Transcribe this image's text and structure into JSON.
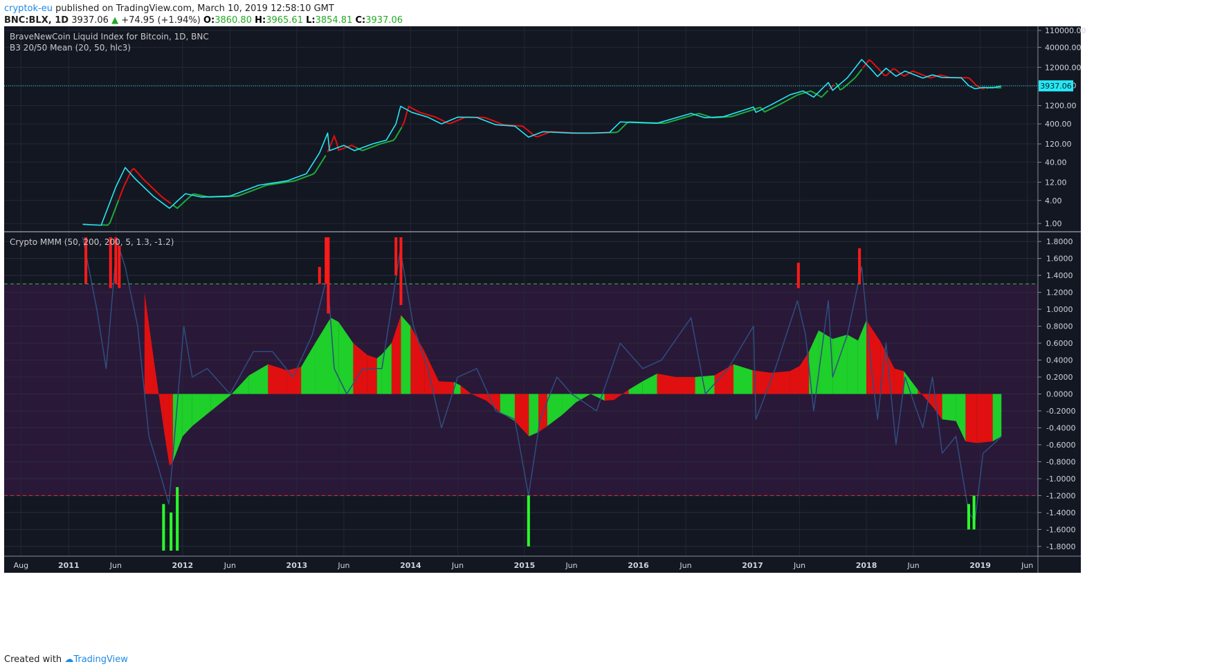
{
  "header": {
    "author": "cryptok-eu",
    "published_text": "published on TradingView.com, March 10, 2019 12:58:10 GMT",
    "symbol": "BNC:BLX, 1D",
    "price": "3937.06",
    "change_arrow": "▲",
    "change": "+74.95 (+1.94%)",
    "o_label": "O:",
    "o": "3860.80",
    "h_label": "H:",
    "h": "3965.61",
    "l_label": "L:",
    "l": "3854.81",
    "c_label": "C:",
    "c": "3937.06"
  },
  "footer": {
    "created_with": "Created with",
    "brand": "TradingView"
  },
  "colors": {
    "background": "#131722",
    "price_line": "#26e8f5",
    "ma_green": "#1faa3a",
    "ma_red": "#e01010",
    "bar_green": "#1fcf2a",
    "bar_red": "#e01010",
    "osc_line": "#2e4e80",
    "band": "#2a1838",
    "upper_line": "#2ec44e",
    "lower_line": "#e83030"
  },
  "chart_data": [
    {
      "type": "line",
      "pane": "price",
      "title": "BraveNewCoin Liquid Index for Bitcoin, 1D, BNC",
      "subtitle": "B3 20/50 Mean (20, 50, hlc3)",
      "yscale": "log",
      "ylim": [
        0.85,
        120000
      ],
      "y_ticks": [
        "1.00",
        "4.00",
        "12.00",
        "40.00",
        "120.00",
        "400.00",
        "1200.00",
        "4000.00",
        "12000.00",
        "40000.00",
        "110000.00"
      ],
      "last_price_label": "3937.06",
      "last_price": 3937.06,
      "x": [
        "2011-02-15",
        "2011-04-15",
        "2011-06-01",
        "2011-07-01",
        "2011-08-01",
        "2011-10-01",
        "2011-11-20",
        "2012-01-10",
        "2012-03-01",
        "2012-06-01",
        "2012-09-01",
        "2012-12-01",
        "2013-02-01",
        "2013-03-15",
        "2013-04-10",
        "2013-04-16",
        "2013-06-01",
        "2013-07-05",
        "2013-09-01",
        "2013-10-15",
        "2013-11-15",
        "2013-11-30",
        "2014-01-05",
        "2014-02-25",
        "2014-04-10",
        "2014-06-01",
        "2014-08-01",
        "2014-10-01",
        "2014-12-01",
        "2015-01-14",
        "2015-03-01",
        "2015-06-01",
        "2015-08-01",
        "2015-10-01",
        "2015-11-04",
        "2016-01-01",
        "2016-03-01",
        "2016-06-18",
        "2016-08-01",
        "2016-10-01",
        "2017-01-04",
        "2017-01-12",
        "2017-03-01",
        "2017-05-01",
        "2017-06-12",
        "2017-07-16",
        "2017-09-01",
        "2017-09-15",
        "2017-11-01",
        "2017-12-17",
        "2018-01-15",
        "2018-02-06",
        "2018-03-05",
        "2018-04-06",
        "2018-05-05",
        "2018-07-01",
        "2018-08-01",
        "2018-09-01",
        "2018-11-01",
        "2018-11-25",
        "2018-12-15",
        "2019-01-10",
        "2019-02-10",
        "2019-03-10"
      ],
      "series": [
        {
          "values": [
            0.95,
            0.9,
            9,
            29,
            15,
            5,
            2.5,
            6,
            4.9,
            5.2,
            10,
            13,
            20,
            70,
            230,
            80,
            110,
            80,
            120,
            150,
            400,
            1150,
            800,
            600,
            400,
            600,
            590,
            380,
            350,
            180,
            250,
            230,
            230,
            240,
            450,
            430,
            415,
            750,
            580,
            620,
            1100,
            800,
            1250,
            2300,
            2900,
            2000,
            4800,
            3000,
            6400,
            19200,
            11000,
            6900,
            11400,
            7000,
            9600,
            6300,
            7600,
            6500,
            6400,
            4000,
            3300,
            3600,
            3500,
            3937
          ]
        }
      ],
      "ma_segments": [
        {
          "from": "2011-04-15",
          "to": "2011-06-10",
          "color": "green"
        },
        {
          "from": "2011-06-10",
          "to": "2011-12-01",
          "color": "red"
        },
        {
          "from": "2011-12-01",
          "to": "2013-04-10",
          "color": "green"
        },
        {
          "from": "2013-04-10",
          "to": "2013-07-10",
          "color": "red"
        },
        {
          "from": "2013-07-10",
          "to": "2013-12-05",
          "color": "green"
        },
        {
          "from": "2013-12-05",
          "to": "2015-10-01",
          "color": "red"
        },
        {
          "from": "2015-10-01",
          "to": "2017-09-05",
          "color": "green"
        },
        {
          "from": "2017-09-05",
          "to": "2017-09-25",
          "color": "red"
        },
        {
          "from": "2017-09-25",
          "to": "2017-12-20",
          "color": "green"
        },
        {
          "from": "2017-12-20",
          "to": "2019-01-20",
          "color": "red"
        },
        {
          "from": "2019-01-20",
          "to": "2019-03-10",
          "color": "green"
        }
      ]
    },
    {
      "type": "area",
      "pane": "oscillator",
      "title": "Crypto MMM (50, 200, 200, 5, 1.3, -1.2)",
      "ylim": [
        -1.85,
        1.85
      ],
      "y_ticks": [
        "1.8000",
        "1.6000",
        "1.4000",
        "1.2000",
        "1.0000",
        "0.8000",
        "0.6000",
        "0.4000",
        "0.2000",
        "0.0000",
        "-0.2000",
        "-0.4000",
        "-0.6000",
        "-0.8000",
        "-1.0000",
        "-1.2000",
        "-1.4000",
        "-1.6000",
        "-1.8000"
      ],
      "upper_threshold": 1.3,
      "lower_threshold": -1.2,
      "histogram": {
        "x": [
          "2011-09-01",
          "2011-10-01",
          "2011-11-01",
          "2011-11-20",
          "2011-12-01",
          "2012-01-01",
          "2012-02-01",
          "2012-04-01",
          "2012-06-01",
          "2012-08-01",
          "2012-10-01",
          "2012-12-01",
          "2013-01-15",
          "2013-03-01",
          "2013-04-20",
          "2013-05-15",
          "2013-07-01",
          "2013-08-15",
          "2013-09-15",
          "2013-10-01",
          "2013-11-01",
          "2013-12-01",
          "2014-01-01",
          "2014-02-15",
          "2014-04-01",
          "2014-05-20",
          "2014-06-10",
          "2014-07-15",
          "2014-09-01",
          "2014-10-15",
          "2014-12-01",
          "2015-01-15",
          "2015-02-15",
          "2015-03-15",
          "2015-05-01",
          "2015-06-15",
          "2015-08-01",
          "2015-09-15",
          "2015-10-15",
          "2015-12-01",
          "2016-01-15",
          "2016-03-01",
          "2016-05-01",
          "2016-07-01",
          "2016-09-01",
          "2016-11-01",
          "2017-01-01",
          "2017-03-01",
          "2017-05-01",
          "2017-06-01",
          "2017-07-01",
          "2017-08-01",
          "2017-09-15",
          "2017-11-01",
          "2017-12-05",
          "2018-01-01",
          "2018-02-15",
          "2018-04-01",
          "2018-05-01",
          "2018-06-15",
          "2018-08-01",
          "2018-09-01",
          "2018-10-15",
          "2018-11-15",
          "2018-12-20",
          "2019-02-10",
          "2019-03-10"
        ],
        "values": [
          1.2,
          0.4,
          -0.4,
          -0.85,
          -0.8,
          -0.5,
          -0.38,
          -0.2,
          -0.02,
          0.22,
          0.35,
          0.28,
          0.32,
          0.6,
          0.9,
          0.85,
          0.6,
          0.46,
          0.42,
          0.47,
          0.6,
          0.93,
          0.8,
          0.5,
          0.15,
          0.14,
          0.1,
          0.0,
          -0.08,
          -0.22,
          -0.32,
          -0.5,
          -0.45,
          -0.38,
          -0.25,
          -0.1,
          0.0,
          -0.08,
          -0.07,
          0.05,
          0.15,
          0.24,
          0.2,
          0.2,
          0.22,
          0.35,
          0.28,
          0.25,
          0.27,
          0.33,
          0.5,
          0.75,
          0.65,
          0.7,
          0.63,
          0.87,
          0.62,
          0.3,
          0.27,
          0.05,
          -0.15,
          -0.3,
          -0.32,
          -0.56,
          -0.58,
          -0.56,
          -0.5
        ],
        "colors": [
          "red",
          "red",
          "red",
          "red",
          "green",
          "green",
          "green",
          "green",
          "green",
          "green",
          "red",
          "red",
          "green",
          "green",
          "green",
          "green",
          "red",
          "red",
          "green",
          "green",
          "red",
          "green",
          "red",
          "red",
          "red",
          "green",
          "red",
          "red",
          "red",
          "green",
          "red",
          "green",
          "red",
          "green",
          "green",
          "green",
          "green",
          "red",
          "red",
          "green",
          "green",
          "red",
          "red",
          "green",
          "red",
          "green",
          "red",
          "red",
          "red",
          "red",
          "green",
          "green",
          "green",
          "green",
          "green",
          "red",
          "red",
          "red",
          "green",
          "red",
          "red",
          "green",
          "green",
          "red",
          "red",
          "green",
          "green"
        ]
      },
      "oscillator": {
        "x": [
          "2011-02-15",
          "2011-04-01",
          "2011-05-01",
          "2011-06-05",
          "2011-07-01",
          "2011-08-10",
          "2011-09-15",
          "2011-10-10",
          "2011-11-18",
          "2012-01-05",
          "2012-02-01",
          "2012-03-20",
          "2012-06-01",
          "2012-08-15",
          "2012-10-15",
          "2012-12-20",
          "2013-02-20",
          "2013-04-09",
          "2013-05-01",
          "2013-06-10",
          "2013-08-01",
          "2013-10-01",
          "2013-11-29",
          "2014-01-10",
          "2014-02-25",
          "2014-04-10",
          "2014-06-01",
          "2014-08-01",
          "2014-10-01",
          "2014-12-01",
          "2015-01-14",
          "2015-02-20",
          "2015-04-15",
          "2015-06-01",
          "2015-08-20",
          "2015-11-04",
          "2016-01-15",
          "2016-03-15",
          "2016-06-18",
          "2016-08-03",
          "2016-10-15",
          "2017-01-04",
          "2017-01-12",
          "2017-03-15",
          "2017-05-25",
          "2017-06-20",
          "2017-07-16",
          "2017-09-01",
          "2017-09-15",
          "2017-11-01",
          "2017-12-17",
          "2018-01-20",
          "2018-02-06",
          "2018-03-05",
          "2018-04-06",
          "2018-05-05",
          "2018-07-01",
          "2018-08-01",
          "2018-09-01",
          "2018-10-15",
          "2018-11-25",
          "2018-12-15",
          "2019-01-10",
          "2019-02-10",
          "2019-03-10"
        ],
        "values": [
          1.9,
          1.0,
          0.3,
          1.8,
          1.5,
          0.8,
          -0.5,
          -0.8,
          -1.3,
          0.8,
          0.2,
          0.3,
          0.0,
          0.5,
          0.5,
          0.2,
          0.7,
          1.4,
          0.3,
          0.0,
          0.3,
          0.3,
          1.7,
          0.8,
          0.3,
          -0.4,
          0.2,
          0.3,
          -0.2,
          -0.3,
          -1.2,
          -0.3,
          0.2,
          0.0,
          -0.2,
          0.6,
          0.3,
          0.4,
          0.9,
          0.0,
          0.3,
          0.8,
          -0.3,
          0.3,
          1.1,
          0.7,
          -0.2,
          1.1,
          0.2,
          0.7,
          1.5,
          0.2,
          -0.3,
          0.6,
          -0.6,
          0.2,
          -0.4,
          0.2,
          -0.7,
          -0.5,
          -1.4,
          -1.5,
          -0.7,
          -0.6,
          -0.5
        ]
      },
      "extreme_spikes": [
        {
          "x": "2011-02-25",
          "values": [
            1.85,
            1.3
          ],
          "color": "red"
        },
        {
          "x": "2011-05-15",
          "values": [
            1.85,
            1.25
          ],
          "color": "red"
        },
        {
          "x": "2011-06-01",
          "values": [
            1.85,
            1.3
          ],
          "color": "red"
        },
        {
          "x": "2011-06-12",
          "values": [
            1.75,
            1.25
          ],
          "color": "red"
        },
        {
          "x": "2011-11-01",
          "values": [
            -1.3,
            -1.85
          ],
          "color": "green"
        },
        {
          "x": "2011-11-25",
          "values": [
            -1.4,
            -1.85
          ],
          "color": "green"
        },
        {
          "x": "2011-12-15",
          "values": [
            -1.1,
            -1.85
          ],
          "color": "green"
        },
        {
          "x": "2013-03-15",
          "values": [
            1.5,
            1.3
          ],
          "color": "red"
        },
        {
          "x": "2013-04-05",
          "values": [
            1.85,
            1.3
          ],
          "color": "red"
        },
        {
          "x": "2013-04-12",
          "values": [
            1.85,
            0.95
          ],
          "color": "red"
        },
        {
          "x": "2013-11-15",
          "values": [
            1.85,
            1.4
          ],
          "color": "red"
        },
        {
          "x": "2013-12-01",
          "values": [
            1.85,
            1.05
          ],
          "color": "red"
        },
        {
          "x": "2015-01-14",
          "values": [
            -1.2,
            -1.8
          ],
          "color": "green"
        },
        {
          "x": "2017-05-28",
          "values": [
            1.55,
            1.25
          ],
          "color": "red"
        },
        {
          "x": "2017-12-10",
          "values": [
            1.72,
            1.3
          ],
          "color": "red"
        },
        {
          "x": "2018-11-25",
          "values": [
            -1.3,
            -1.6
          ],
          "color": "green"
        },
        {
          "x": "2018-12-12",
          "values": [
            -1.2,
            -1.6
          ],
          "color": "green"
        }
      ]
    }
  ],
  "x_axis": {
    "labels": [
      {
        "text": "Aug",
        "date": "2010-08-01",
        "bold": false
      },
      {
        "text": "2011",
        "date": "2011-01-01",
        "bold": true
      },
      {
        "text": "Jun",
        "date": "2011-06-01",
        "bold": false
      },
      {
        "text": "2012",
        "date": "2012-01-01",
        "bold": true
      },
      {
        "text": "Jun",
        "date": "2012-06-01",
        "bold": false
      },
      {
        "text": "2013",
        "date": "2013-01-01",
        "bold": true
      },
      {
        "text": "Jun",
        "date": "2013-06-01",
        "bold": false
      },
      {
        "text": "2014",
        "date": "2014-01-01",
        "bold": true
      },
      {
        "text": "Jun",
        "date": "2014-06-01",
        "bold": false
      },
      {
        "text": "2015",
        "date": "2015-01-01",
        "bold": true
      },
      {
        "text": "Jun",
        "date": "2015-06-01",
        "bold": false
      },
      {
        "text": "2016",
        "date": "2016-01-01",
        "bold": true
      },
      {
        "text": "Jun",
        "date": "2016-06-01",
        "bold": false
      },
      {
        "text": "2017",
        "date": "2017-01-01",
        "bold": true
      },
      {
        "text": "Jun",
        "date": "2017-06-01",
        "bold": false
      },
      {
        "text": "2018",
        "date": "2018-01-01",
        "bold": true
      },
      {
        "text": "Jun",
        "date": "2018-06-01",
        "bold": false
      },
      {
        "text": "2019",
        "date": "2019-01-01",
        "bold": true
      },
      {
        "text": "Jun",
        "date": "2019-06-01",
        "bold": false
      }
    ]
  }
}
